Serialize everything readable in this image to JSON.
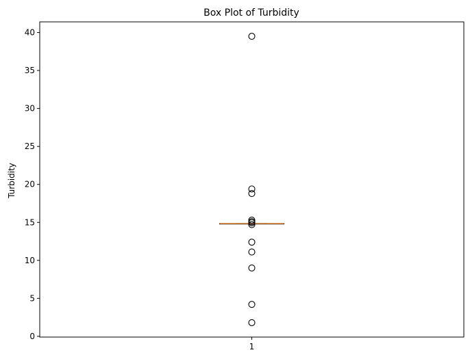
{
  "chart_data": {
    "type": "box",
    "title": "Box Plot of Turbidity",
    "xlabel": "",
    "ylabel": "Turbidity",
    "categories": [
      "1"
    ],
    "ylim": [
      -0.1,
      41.4
    ],
    "yticks": [
      0,
      5,
      10,
      15,
      20,
      25,
      30,
      35,
      40
    ],
    "box": {
      "q1": 14.85,
      "median": 14.85,
      "q3": 14.85,
      "whisker_low": 14.85,
      "whisker_high": 14.85
    },
    "outliers": [
      39.5,
      19.4,
      18.8,
      15.3,
      15.1,
      14.95,
      14.7,
      12.4,
      11.1,
      9.0,
      4.2,
      1.8
    ],
    "colors": {
      "median": "#e08a45",
      "box": "#000000"
    },
    "grid": false
  }
}
